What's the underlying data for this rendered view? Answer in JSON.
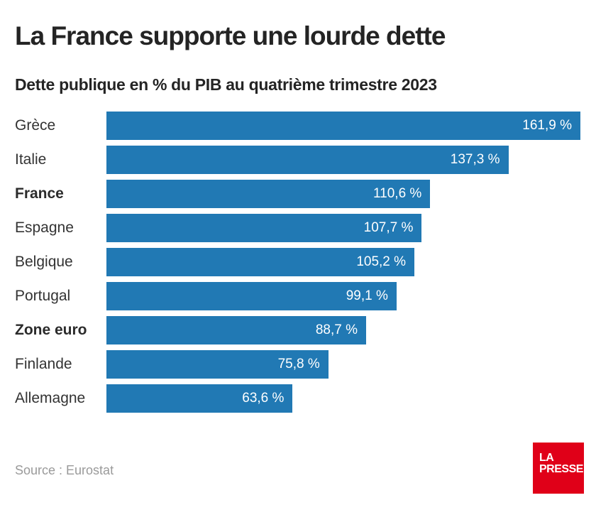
{
  "header": {
    "title": "La France supporte une lourde dette",
    "subtitle": "Dette publique en % du PIB au quatrième trimestre 2023"
  },
  "chart_data": {
    "type": "bar",
    "orientation": "horizontal",
    "title": "La France supporte une lourde dette",
    "subtitle": "Dette publique en % du PIB au quatrième trimestre 2023",
    "unit": "% du PIB",
    "categories": [
      "Grèce",
      "Italie",
      "France",
      "Espagne",
      "Belgique",
      "Portugal",
      "Zone euro",
      "Finlande",
      "Allemagne"
    ],
    "values": [
      161.9,
      137.3,
      110.6,
      107.7,
      105.2,
      99.1,
      88.7,
      75.8,
      63.6
    ],
    "value_labels": [
      "161,9 %",
      "137,3 %",
      "110,6 %",
      "107,7 %",
      "105,2 %",
      "99,1 %",
      "88,7 %",
      "75,8 %",
      "63,6 %"
    ],
    "emphasized_indices": [
      2,
      6
    ],
    "bar_color": "#2179b4",
    "value_label_color": "#ffffff",
    "xlim": [
      0,
      161.9
    ],
    "grid": false,
    "legend": false
  },
  "footer": {
    "source": "Source : Eurostat",
    "logo": {
      "line1": "LA",
      "line2": "PRESSE",
      "background": "#e00018",
      "text_color": "#ffffff"
    }
  },
  "colors": {
    "bar": "#2179b4",
    "title": "#242424",
    "category_label": "#333333",
    "source_text": "#9a9a9a",
    "logo_red": "#e00018",
    "background": "#ffffff"
  }
}
